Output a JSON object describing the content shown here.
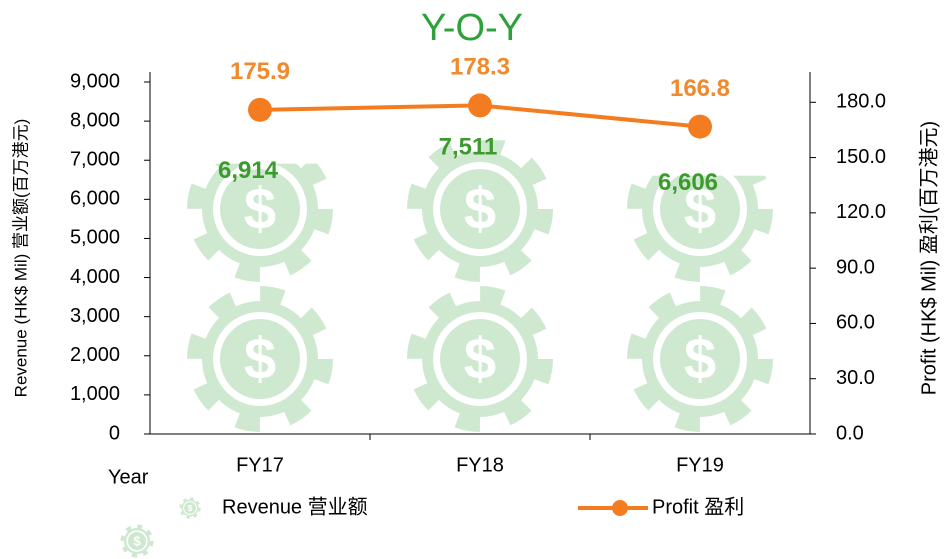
{
  "chart_data": {
    "type": "bar",
    "title": "Y-O-Y",
    "x_label": "Year",
    "y_label": "Revenue (HK$ Mil) 营业额(百万港元)",
    "y2_label": "Profit (HK$ Mil) 盈利(百万港元)",
    "categories": [
      "FY17",
      "FY18",
      "FY19"
    ],
    "series": [
      {
        "name": "Revenue 营业额",
        "color": "#cfe9d1",
        "label_color": "#3d9a2f",
        "axis": "y",
        "values": [
          6914,
          7511,
          6606
        ],
        "value_labels": [
          "6,914",
          "7,511",
          "6,606"
        ]
      },
      {
        "name": "Profit 盈利",
        "type": "line",
        "color": "#f47c20",
        "label_color": "#f08a2c",
        "axis": "y2",
        "values": [
          175.9,
          178.3,
          166.8
        ]
      }
    ],
    "ylim": [
      0,
      9000
    ],
    "yticks": [
      0,
      {
        "value": 1000,
        "label": "1,000"
      },
      {
        "value": 2000,
        "label": "2,000"
      },
      {
        "value": 3000,
        "label": "3,000"
      },
      {
        "value": 4000,
        "label": "4,000"
      },
      {
        "value": 5000,
        "label": "5,000"
      },
      {
        "value": 6000,
        "label": "6,000"
      },
      {
        "value": 7000,
        "label": "7,000"
      },
      {
        "value": 8000,
        "label": "8,000"
      },
      {
        "value": 9000,
        "label": "9,000"
      }
    ],
    "y2lim": [
      0,
      191
    ],
    "y2ticks": [
      {
        "value": 0,
        "label": "0.0"
      },
      {
        "value": 30,
        "label": "30.0"
      },
      {
        "value": 60,
        "label": "60.0"
      },
      {
        "value": 90,
        "label": "90.0"
      },
      {
        "value": 120,
        "label": "120.0"
      },
      {
        "value": 150,
        "label": "150.0"
      },
      {
        "value": 180,
        "label": "180.0"
      }
    ],
    "grid": false,
    "legend": "bottom"
  }
}
